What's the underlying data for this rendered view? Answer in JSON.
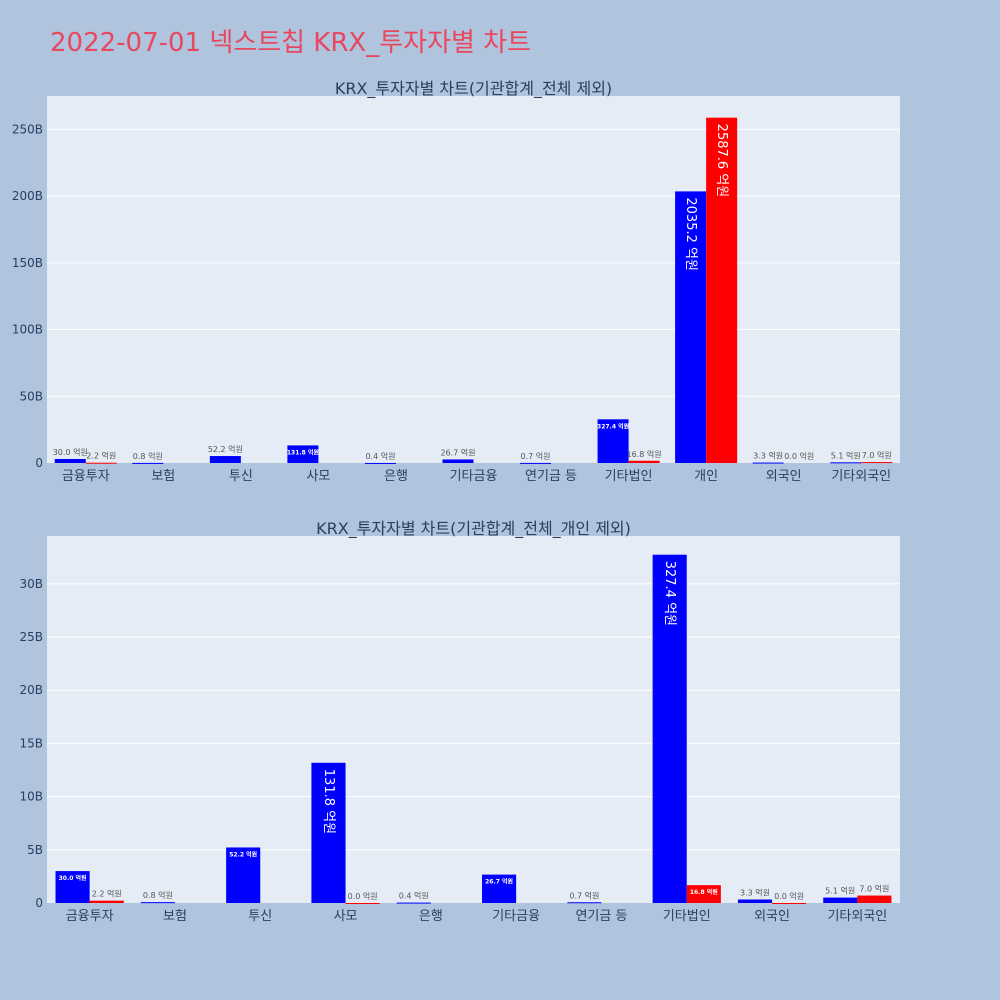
{
  "page_title": "2022-07-01 넥스트칩 KRX_투자자별 차트",
  "chart_data": [
    {
      "type": "bar",
      "title": "KRX_투자자별 차트(기관합계_전체 제외)",
      "categories": [
        "금융투자",
        "보험",
        "투신",
        "사모",
        "은행",
        "기타금융",
        "연기금 등",
        "기타법인",
        "개인",
        "외국인",
        "기타외국인"
      ],
      "series": [
        {
          "color": "#0000ff",
          "values": [
            3.0,
            0.08,
            5.22,
            13.18,
            0.04,
            2.67,
            0.07,
            32.74,
            203.52,
            0.33,
            0.51
          ],
          "labels": [
            "30.0 억원",
            "0.8 억원",
            "52.2 억원",
            "131.8 억원",
            "0.4 억원",
            "26.7 억원",
            "0.7 억원",
            "327.4 억원",
            "2035.2 억원",
            "3.3 억원",
            "5.1 억원"
          ]
        },
        {
          "color": "#ff0000",
          "values": [
            0.22,
            0,
            0,
            0,
            0,
            0,
            0,
            1.68,
            258.76,
            0,
            0.7
          ],
          "labels": [
            "2.2 억원",
            "",
            "",
            "",
            "",
            "",
            "",
            "16.8 억원",
            "2587.6 억원",
            "0.0 억원",
            "7.0 억원"
          ]
        }
      ],
      "ylim": [
        0,
        275
      ],
      "yticks": [
        0,
        50,
        100,
        150,
        200,
        250
      ],
      "ytick_labels": [
        "0",
        "50B",
        "100B",
        "150B",
        "200B",
        "250B"
      ],
      "grid": true
    },
    {
      "type": "bar",
      "title": "KRX_투자자별 차트(기관합계_전체_개인 제외)",
      "categories": [
        "금융투자",
        "보험",
        "투신",
        "사모",
        "은행",
        "기타금융",
        "연기금 등",
        "기타법인",
        "외국인",
        "기타외국인"
      ],
      "series": [
        {
          "color": "#0000ff",
          "values": [
            3.0,
            0.08,
            5.22,
            13.18,
            0.04,
            2.67,
            0.07,
            32.74,
            0.33,
            0.51
          ],
          "labels": [
            "30.0 억원",
            "0.8 억원",
            "52.2 억원",
            "131.8 억원",
            "0.4 억원",
            "26.7 억원",
            "0.7 억원",
            "327.4 억원",
            "3.3 억원",
            "5.1 억원"
          ]
        },
        {
          "color": "#ff0000",
          "values": [
            0.22,
            0,
            0,
            0.001,
            0,
            0,
            0,
            1.68,
            0.001,
            0.7
          ],
          "labels": [
            "2.2 억원",
            "",
            "",
            "0.0 억원",
            "",
            "",
            "",
            "16.8 억원",
            "0.0 억원",
            "7.0 억원"
          ]
        }
      ],
      "ylim": [
        0,
        34.5
      ],
      "yticks": [
        0,
        5,
        10,
        15,
        20,
        25,
        30
      ],
      "ytick_labels": [
        "0",
        "5B",
        "10B",
        "15B",
        "20B",
        "25B",
        "30B"
      ],
      "grid": true
    }
  ]
}
